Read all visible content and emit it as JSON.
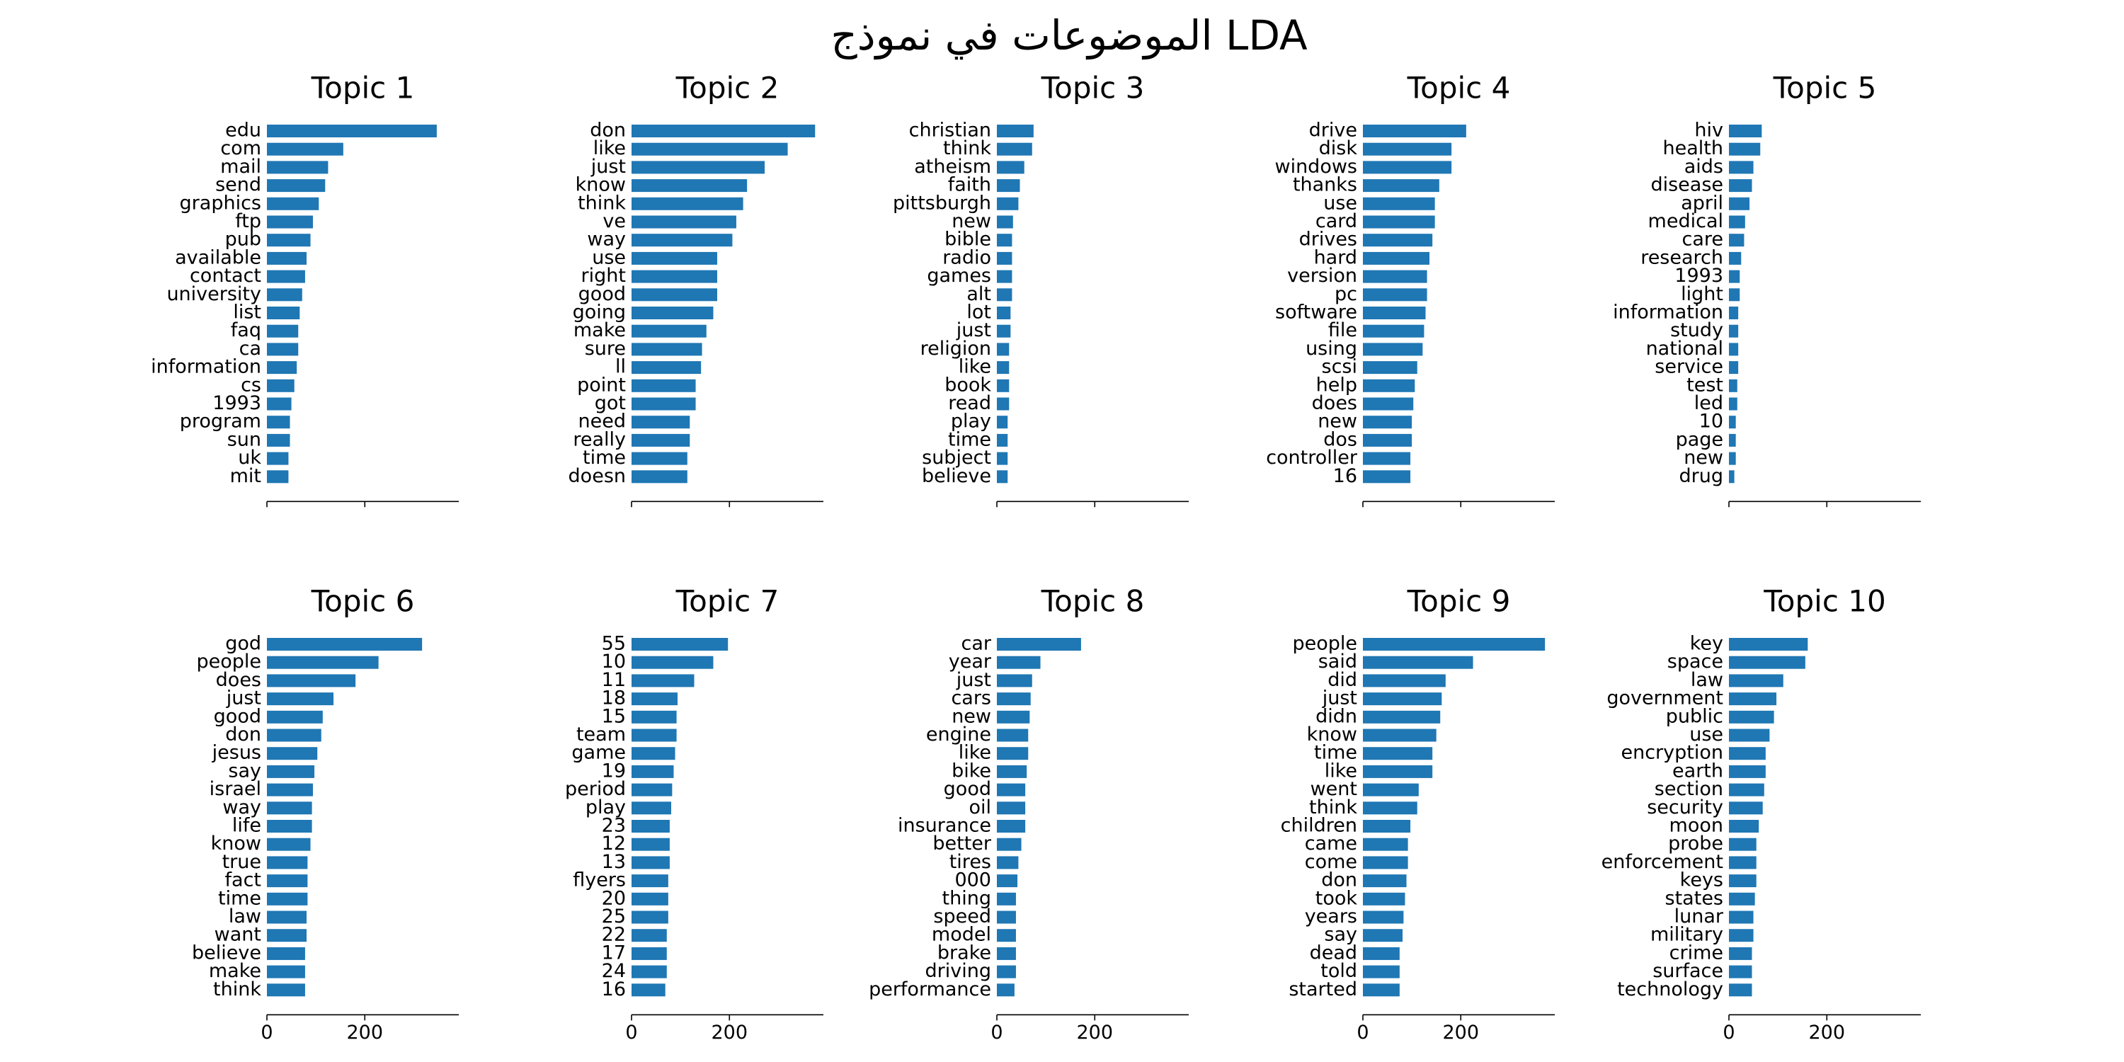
{
  "title": "الموضوعات في نموذج LDA",
  "chart_data": [
    {
      "type": "bar",
      "orientation": "horizontal",
      "title": "Topic 1",
      "color": "#1f77b4",
      "xlim": [
        0,
        392
      ],
      "xticks": [
        0,
        200
      ],
      "categories": [
        "edu",
        "com",
        "mail",
        "send",
        "graphics",
        "ftp",
        "pub",
        "available",
        "contact",
        "university",
        "list",
        "faq",
        "ca",
        "information",
        "cs",
        "1993",
        "program",
        "sun",
        "uk",
        "mit"
      ],
      "values": [
        347,
        156,
        125,
        119,
        106,
        94,
        89,
        81,
        78,
        72,
        67,
        64,
        64,
        61,
        56,
        50,
        47,
        47,
        44,
        44
      ]
    },
    {
      "type": "bar",
      "orientation": "horizontal",
      "title": "Topic 2",
      "color": "#1f77b4",
      "xlim": [
        0,
        392
      ],
      "xticks": [
        0,
        200
      ],
      "categories": [
        "don",
        "like",
        "just",
        "know",
        "think",
        "ve",
        "way",
        "use",
        "right",
        "good",
        "going",
        "make",
        "sure",
        "ll",
        "point",
        "got",
        "need",
        "really",
        "time",
        "doesn"
      ],
      "values": [
        375,
        319,
        272,
        236,
        228,
        214,
        206,
        175,
        175,
        175,
        167,
        153,
        144,
        142,
        131,
        131,
        119,
        119,
        114,
        114
      ]
    },
    {
      "type": "bar",
      "orientation": "horizontal",
      "title": "Topic 3",
      "color": "#1f77b4",
      "xlim": [
        0,
        392
      ],
      "xticks": [
        0,
        200
      ],
      "categories": [
        "christian",
        "think",
        "atheism",
        "faith",
        "pittsburgh",
        "new",
        "bible",
        "radio",
        "games",
        "alt",
        "lot",
        "just",
        "religion",
        "like",
        "book",
        "read",
        "play",
        "time",
        "subject",
        "believe"
      ],
      "values": [
        75,
        72,
        56,
        47,
        44,
        33,
        31,
        31,
        31,
        31,
        28,
        28,
        25,
        25,
        25,
        25,
        22,
        22,
        22,
        22
      ]
    },
    {
      "type": "bar",
      "orientation": "horizontal",
      "title": "Topic 4",
      "color": "#1f77b4",
      "xlim": [
        0,
        392
      ],
      "xticks": [
        0,
        200
      ],
      "categories": [
        "drive",
        "disk",
        "windows",
        "thanks",
        "use",
        "card",
        "drives",
        "hard",
        "version",
        "pc",
        "software",
        "file",
        "using",
        "scsi",
        "help",
        "does",
        "new",
        "dos",
        "controller",
        "16"
      ],
      "values": [
        211,
        181,
        181,
        156,
        147,
        147,
        142,
        136,
        131,
        131,
        128,
        125,
        122,
        111,
        106,
        103,
        100,
        100,
        97,
        97
      ]
    },
    {
      "type": "bar",
      "orientation": "horizontal",
      "title": "Topic 5",
      "color": "#1f77b4",
      "xlim": [
        0,
        392
      ],
      "xticks": [
        0,
        200
      ],
      "categories": [
        "hiv",
        "health",
        "aids",
        "disease",
        "april",
        "medical",
        "care",
        "research",
        "1993",
        "light",
        "information",
        "study",
        "national",
        "service",
        "test",
        "led",
        "10",
        "page",
        "new",
        "drug"
      ],
      "values": [
        67,
        64,
        50,
        47,
        42,
        33,
        31,
        25,
        22,
        22,
        19,
        19,
        19,
        19,
        17,
        17,
        14,
        14,
        14,
        11
      ]
    },
    {
      "type": "bar",
      "orientation": "horizontal",
      "title": "Topic 6",
      "color": "#1f77b4",
      "xlim": [
        0,
        392
      ],
      "xticks": [
        0,
        200
      ],
      "categories": [
        "god",
        "people",
        "does",
        "just",
        "good",
        "don",
        "jesus",
        "say",
        "israel",
        "way",
        "life",
        "know",
        "true",
        "fact",
        "time",
        "law",
        "want",
        "believe",
        "make",
        "think"
      ],
      "values": [
        317,
        228,
        181,
        136,
        114,
        111,
        103,
        97,
        94,
        92,
        92,
        89,
        83,
        83,
        83,
        81,
        81,
        78,
        78,
        78
      ]
    },
    {
      "type": "bar",
      "orientation": "horizontal",
      "title": "Topic 7",
      "color": "#1f77b4",
      "xlim": [
        0,
        392
      ],
      "xticks": [
        0,
        200
      ],
      "categories": [
        "55",
        "10",
        "11",
        "18",
        "15",
        "team",
        "game",
        "19",
        "period",
        "play",
        "23",
        "12",
        "13",
        "flyers",
        "20",
        "25",
        "22",
        "17",
        "24",
        "16"
      ],
      "values": [
        197,
        167,
        128,
        94,
        92,
        92,
        89,
        86,
        83,
        81,
        78,
        78,
        78,
        75,
        75,
        75,
        72,
        72,
        72,
        69
      ]
    },
    {
      "type": "bar",
      "orientation": "horizontal",
      "title": "Topic 8",
      "color": "#1f77b4",
      "xlim": [
        0,
        392
      ],
      "xticks": [
        0,
        200
      ],
      "categories": [
        "car",
        "year",
        "just",
        "cars",
        "new",
        "engine",
        "like",
        "bike",
        "good",
        "oil",
        "insurance",
        "better",
        "tires",
        "000",
        "thing",
        "speed",
        "model",
        "brake",
        "driving",
        "performance"
      ],
      "values": [
        172,
        89,
        72,
        69,
        67,
        64,
        64,
        61,
        58,
        58,
        58,
        50,
        44,
        42,
        39,
        39,
        39,
        39,
        39,
        36
      ]
    },
    {
      "type": "bar",
      "orientation": "horizontal",
      "title": "Topic 9",
      "color": "#1f77b4",
      "xlim": [
        0,
        392
      ],
      "xticks": [
        0,
        200
      ],
      "categories": [
        "people",
        "said",
        "did",
        "just",
        "didn",
        "know",
        "time",
        "like",
        "went",
        "think",
        "children",
        "came",
        "come",
        "don",
        "took",
        "years",
        "say",
        "dead",
        "told",
        "started"
      ],
      "values": [
        372,
        225,
        169,
        161,
        158,
        150,
        142,
        142,
        114,
        111,
        97,
        92,
        92,
        89,
        86,
        83,
        81,
        75,
        75,
        75
      ]
    },
    {
      "type": "bar",
      "orientation": "horizontal",
      "title": "Topic 10",
      "color": "#1f77b4",
      "xlim": [
        0,
        392
      ],
      "xticks": [
        0,
        200
      ],
      "categories": [
        "key",
        "space",
        "law",
        "government",
        "public",
        "use",
        "encryption",
        "earth",
        "section",
        "security",
        "moon",
        "probe",
        "enforcement",
        "keys",
        "states",
        "lunar",
        "military",
        "crime",
        "surface",
        "technology"
      ],
      "values": [
        161,
        156,
        111,
        97,
        92,
        83,
        75,
        75,
        72,
        69,
        61,
        56,
        56,
        56,
        53,
        50,
        50,
        47,
        47,
        47
      ]
    }
  ]
}
